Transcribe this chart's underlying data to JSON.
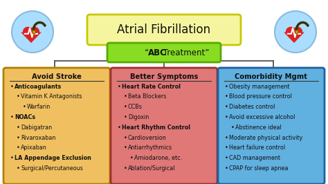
{
  "title": "Atrial Fibrillation",
  "subtitle_prefix": "“",
  "subtitle_bold": "ABC",
  "subtitle_middle": " Treatment",
  "subtitle_suffix": "”",
  "bg_color": "#ffffff",
  "title_box_color": "#f5f5a0",
  "title_box_edge": "#c8c800",
  "subtitle_box_color": "#88dd22",
  "subtitle_box_edge": "#55aa00",
  "col1_title": "Avoid Stroke",
  "col2_title": "Better Symptoms",
  "col3_title": "Comorbidity Mgmt",
  "col1_bg": "#f0c060",
  "col2_bg": "#e07878",
  "col3_bg": "#60b0e0",
  "col1_edge": "#b08000",
  "col2_edge": "#a03030",
  "col3_edge": "#2060a0",
  "line_color": "#444444",
  "icon_circle_color": "#aaddff",
  "col1_lines": [
    {
      "text": "Anticoagulants",
      "bold": true,
      "indent": 0
    },
    {
      "text": "Vitamin K Antagonists",
      "bold": false,
      "indent": 1
    },
    {
      "text": "Warfarin",
      "bold": false,
      "indent": 2
    },
    {
      "text": "NOACs",
      "bold": true,
      "indent": 0
    },
    {
      "text": "Dabigatran",
      "bold": false,
      "indent": 1
    },
    {
      "text": "Rivaroxaban",
      "bold": false,
      "indent": 1
    },
    {
      "text": "Apixaban",
      "bold": false,
      "indent": 1
    },
    {
      "text": "LA Appendage Exclusion",
      "bold": true,
      "indent": 0
    },
    {
      "text": "Surgical/Percutaneous",
      "bold": false,
      "indent": 1
    }
  ],
  "col2_lines": [
    {
      "text": "Heart Rate Control",
      "bold": true,
      "indent": 0
    },
    {
      "text": "Beta Blockers",
      "bold": false,
      "indent": 1
    },
    {
      "text": "CCBs",
      "bold": false,
      "indent": 1
    },
    {
      "text": "Digoxin",
      "bold": false,
      "indent": 1
    },
    {
      "text": "Heart Rhythm Control",
      "bold": true,
      "indent": 0
    },
    {
      "text": "Cardioversion",
      "bold": false,
      "indent": 1
    },
    {
      "text": "Antiarrhythmics",
      "bold": false,
      "indent": 1
    },
    {
      "text": "Amiodarone, etc.",
      "bold": false,
      "indent": 2
    },
    {
      "text": "Ablation/Surgical",
      "bold": false,
      "indent": 1
    }
  ],
  "col3_lines": [
    {
      "text": "Obesity management",
      "bold": false,
      "indent": 0
    },
    {
      "text": "Blood pressure control",
      "bold": false,
      "indent": 0
    },
    {
      "text": "Diabetes control",
      "bold": false,
      "indent": 0
    },
    {
      "text": "Avoid excessive alcohol",
      "bold": false,
      "indent": 0
    },
    {
      "text": "Abstinence ideal",
      "bold": false,
      "indent": 1
    },
    {
      "text": "Moderate physical activity",
      "bold": false,
      "indent": 0
    },
    {
      "text": "Heart failure control",
      "bold": false,
      "indent": 0
    },
    {
      "text": "CAD management",
      "bold": false,
      "indent": 0
    },
    {
      "text": "CPAP for sleep apnea",
      "bold": false,
      "indent": 0
    }
  ]
}
